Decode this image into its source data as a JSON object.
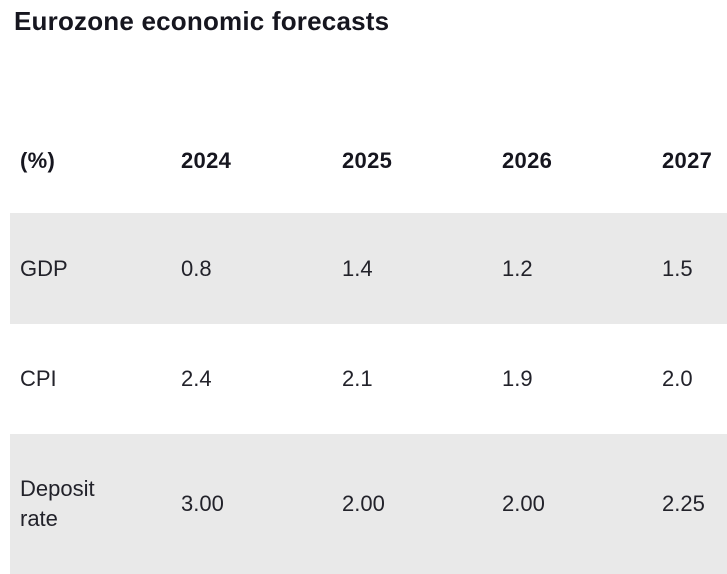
{
  "title": "Eurozone economic forecasts",
  "table": {
    "header": [
      "(%)",
      "2024",
      "2025",
      "2026",
      "2027"
    ],
    "rows": [
      {
        "label": "GDP",
        "values": [
          "0.8",
          "1.4",
          "1.2",
          "1.5"
        ]
      },
      {
        "label": "CPI",
        "values": [
          "2.4",
          "2.1",
          "1.9",
          "2.0"
        ]
      },
      {
        "label": "Deposit rate",
        "values": [
          "3.00",
          "2.00",
          "2.00",
          "2.25"
        ]
      }
    ]
  },
  "colors": {
    "row_shade": "#e9e9e9",
    "background": "#ffffff",
    "text": "#16161f"
  },
  "chart_data": {
    "type": "table",
    "title": "Eurozone economic forecasts",
    "unit": "%",
    "columns": [
      "(%)",
      "2024",
      "2025",
      "2026",
      "2027"
    ],
    "rows": [
      [
        "GDP",
        0.8,
        1.4,
        1.2,
        1.5
      ],
      [
        "CPI",
        2.4,
        2.1,
        1.9,
        2.0
      ],
      [
        "Deposit rate",
        3.0,
        2.0,
        2.0,
        2.25
      ]
    ]
  }
}
